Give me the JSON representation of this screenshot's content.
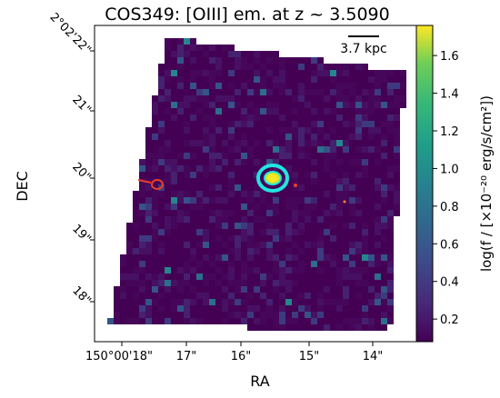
{
  "chart_data": {
    "type": "heatmap",
    "title": "COS349: [OIII] em. at z ~ 3.5090",
    "xlabel": "RA",
    "ylabel": "DEC",
    "xticks": [
      "150°00'18\"",
      "17\"",
      "16\"",
      "15\"",
      "14\""
    ],
    "yticks": [
      "2°02'22\"",
      "21\"",
      "20\"",
      "19\"",
      "18\""
    ],
    "scalebar_label": "3.7 kpc",
    "colorbar": {
      "label": "log(f / [×10⁻²⁰ erg/s/cm²])",
      "range": [
        0.08,
        1.76
      ],
      "ticks": [
        "0.2",
        "0.4",
        "0.6",
        "0.8",
        "1.0",
        "1.2",
        "1.4",
        "1.6"
      ],
      "tick_values": [
        0.2,
        0.4,
        0.6,
        0.8,
        1.0,
        1.2,
        1.4,
        1.6
      ],
      "colormap": "viridis"
    },
    "grid": false,
    "contour_colors": {
      "cyan": "#22e5e0",
      "red": "#e8402a",
      "orange": "#f08030"
    }
  }
}
